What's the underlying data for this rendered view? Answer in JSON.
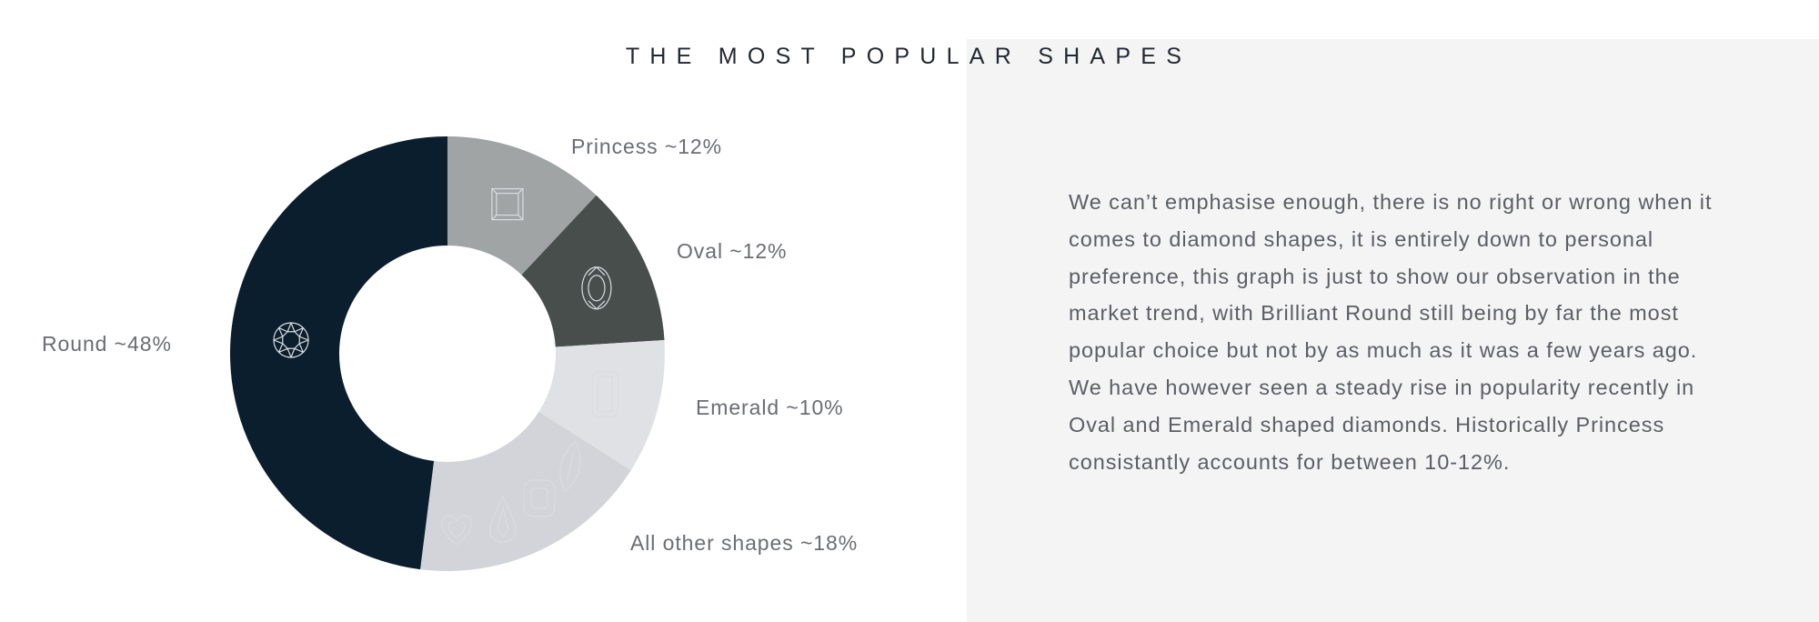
{
  "title": "THE MOST POPULAR SHAPES",
  "description": "We can’t emphasise enough, there is no right or wrong when it comes to diamond shapes, it is entirely down to personal preference, this graph is just to show our observation in the market trend, with Brilliant Round still being by far the most popular choice but not by as much as it was a few years ago. We have however seen a steady rise in popularity recently in Oval and Emerald shaped diamonds. Historically Princess consistantly accounts for between 10-12%.",
  "chart_data": {
    "type": "pie",
    "donut": true,
    "title": "THE MOST POPULAR SHAPES",
    "slices": [
      {
        "name": "Princess",
        "label": "Princess ~12%",
        "value": 12,
        "color": "#a1a4a4",
        "icon": "princess-cut-icon"
      },
      {
        "name": "Oval",
        "label": "Oval ~12%",
        "value": 12,
        "color": "#474e4c",
        "icon": "oval-cut-icon"
      },
      {
        "name": "Emerald",
        "label": "Emerald ~10%",
        "value": 10,
        "color": "#e0e1e4",
        "icon": "emerald-cut-icon"
      },
      {
        "name": "All other shapes",
        "label": "All other shapes ~18%",
        "value": 18,
        "color": "#d2d4d9",
        "icon": "other-cuts-icon"
      },
      {
        "name": "Round",
        "label": "Round ~48%",
        "value": 48,
        "color": "#0b1e2d",
        "icon": "round-brilliant-icon"
      }
    ]
  },
  "colors": {
    "panel_background": "#f4f4f5",
    "title_text": "#222832",
    "body_text": "#5b5e63",
    "label_text": "#6a6d72"
  }
}
